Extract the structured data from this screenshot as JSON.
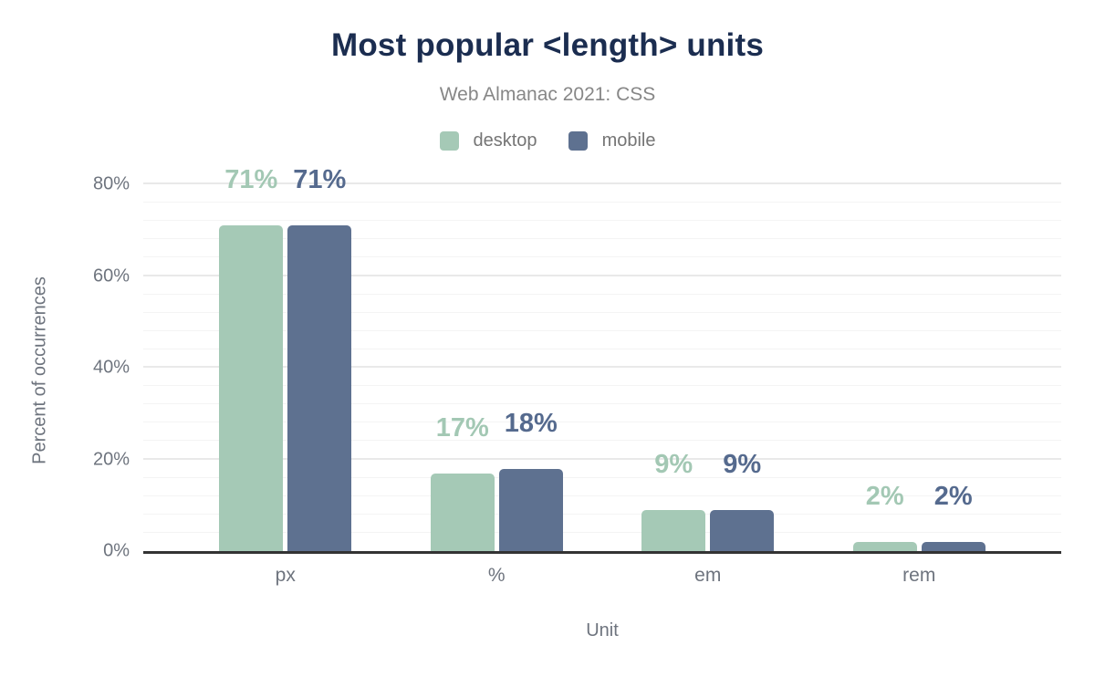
{
  "chart_data": {
    "type": "bar",
    "title": "Most popular <length> units",
    "subtitle": "Web Almanac 2021: CSS",
    "categories": [
      "px",
      "%",
      "em",
      "rem"
    ],
    "series": [
      {
        "name": "desktop",
        "color": "#a5c9b6",
        "label_color": "#a3c8b4",
        "values": [
          71,
          17,
          9,
          2
        ]
      },
      {
        "name": "mobile",
        "color": "#5e7190",
        "label_color": "#556a8e",
        "values": [
          71,
          18,
          9,
          2
        ]
      }
    ],
    "value_suffix": "%",
    "xlabel": "Unit",
    "ylabel": "Percent of occurrences",
    "ylim": [
      0,
      80
    ],
    "yticks": [
      0,
      20,
      40,
      60,
      80
    ],
    "ytick_suffix": "%",
    "minor_grid_step": 4,
    "major_grid_step": 20,
    "grid": true,
    "legend_position": "top"
  },
  "colors": {
    "title": "#1b2d50",
    "subtitle": "#878787",
    "axis_text": "#6e747e",
    "legend_text": "#757575",
    "baseline": "#333333",
    "grid_minor": "#f4f4f4",
    "grid_major": "#e9e9e9",
    "background": "#ffffff"
  }
}
